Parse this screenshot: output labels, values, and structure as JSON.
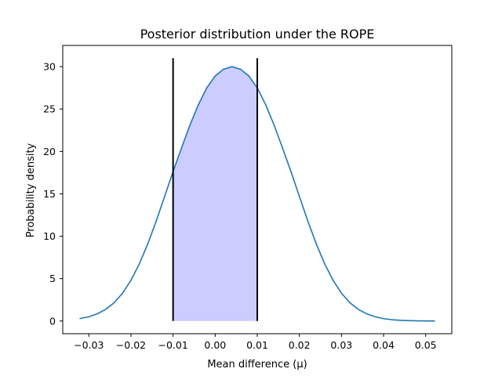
{
  "chart_data": {
    "type": "line",
    "title": "Posterior distribution under the ROPE",
    "xlabel": "Mean difference (μ)",
    "ylabel": "Probability density",
    "xlim": [
      -0.0362,
      0.0562
    ],
    "ylim": [
      -1.5,
      32.5
    ],
    "xticks": [
      -0.03,
      -0.02,
      -0.01,
      0.0,
      0.01,
      0.02,
      0.03,
      0.04,
      0.05
    ],
    "xtick_labels": [
      "−0.03",
      "−0.02",
      "−0.01",
      "0.00",
      "0.01",
      "0.02",
      "0.03",
      "0.04",
      "0.05"
    ],
    "yticks": [
      0,
      5,
      10,
      15,
      20,
      25,
      30
    ],
    "ytick_labels": [
      "0",
      "5",
      "10",
      "15",
      "20",
      "25",
      "30"
    ],
    "grid": false,
    "series": [
      {
        "color": "#1f77b4",
        "x": [
          -0.0322,
          -0.03,
          -0.028,
          -0.026,
          -0.024,
          -0.022,
          -0.02,
          -0.018,
          -0.016,
          -0.014,
          -0.012,
          -0.01,
          -0.008,
          -0.006,
          -0.004,
          -0.002,
          0.0,
          0.002,
          0.004,
          0.006,
          0.008,
          0.01,
          0.012,
          0.014,
          0.016,
          0.018,
          0.02,
          0.022,
          0.024,
          0.026,
          0.028,
          0.03,
          0.032,
          0.034,
          0.036,
          0.038,
          0.04,
          0.042,
          0.044,
          0.046,
          0.048,
          0.05,
          0.0522
        ],
        "y": [
          0.28,
          0.5,
          0.84,
          1.37,
          2.15,
          3.28,
          4.8,
          6.75,
          9.1,
          11.79,
          14.69,
          17.63,
          20.4,
          23.1,
          25.5,
          27.5,
          28.9,
          29.7,
          30.0,
          29.7,
          28.9,
          27.5,
          25.5,
          23.1,
          20.4,
          17.63,
          14.69,
          11.79,
          9.1,
          6.75,
          4.8,
          3.28,
          2.15,
          1.37,
          0.84,
          0.5,
          0.28,
          0.15,
          0.08,
          0.04,
          0.02,
          0.01,
          0.0
        ]
      }
    ],
    "rope": {
      "x": [
        -0.01,
        0.01
      ],
      "line_top": 31,
      "fill_color": "#ccccff",
      "line_color": "#000000"
    }
  }
}
